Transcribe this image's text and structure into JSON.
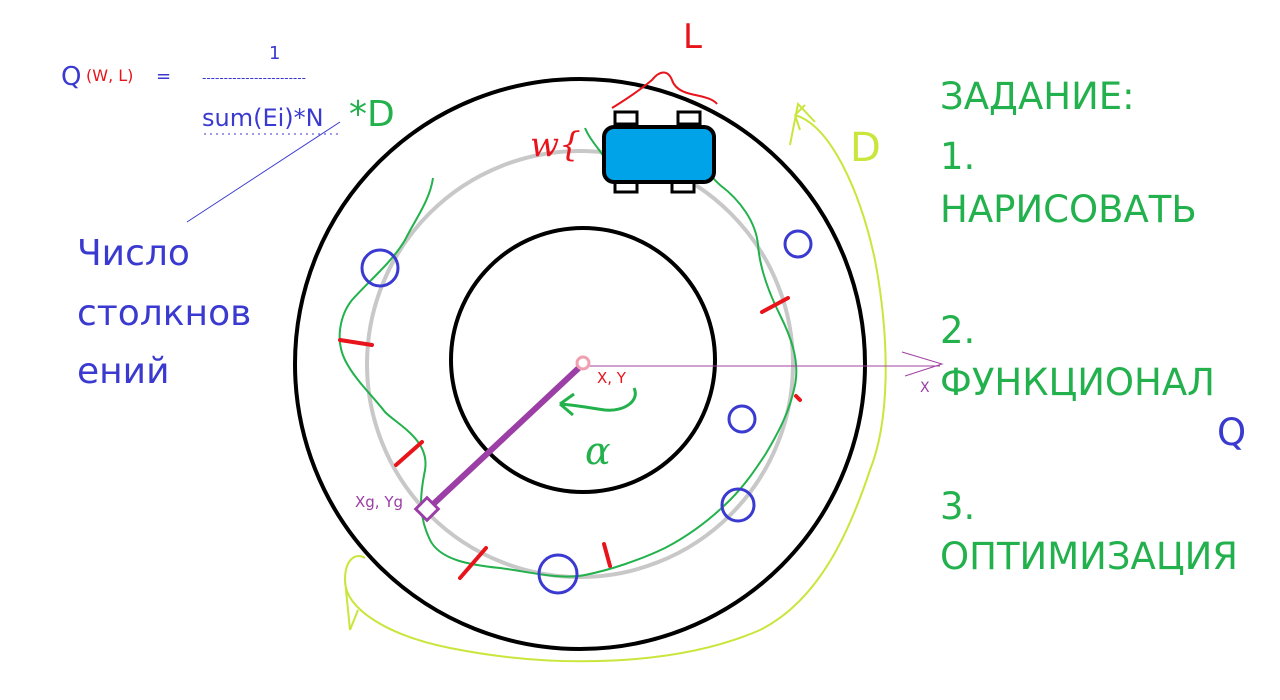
{
  "formula": {
    "q_symbol": "Q",
    "q_args": "(W, L)",
    "equals": "=",
    "numerator": "1",
    "fraction_bar": "------------------------",
    "denominator": "sum(Ei)*N",
    "d_multiplier": "*D"
  },
  "collisions_note": {
    "line1": "Число",
    "line2": "столкнов",
    "line3": "ений"
  },
  "task": {
    "heading": "ЗАДАНИЕ:",
    "step1_num": "1.",
    "step1_text": "НАРИСОВАТЬ",
    "step2_num": "2.",
    "step2_text": "ФУНКЦИОНАЛ",
    "step2_symbol": "Q",
    "step3_num": "3.",
    "step3_text": "ОПТИМИЗАЦИЯ"
  },
  "labels": {
    "length": "L",
    "width": "w{",
    "distance": "D",
    "center": "X, Y",
    "goal": "Xg, Yg",
    "x_axis": "X",
    "angle": "α"
  },
  "colors": {
    "blue": "#3a3ad0",
    "green": "#22b14c",
    "red": "#e8141b",
    "purple": "#9b3ea6",
    "yellow_green": "#c8e63c",
    "car": "#00a2e8",
    "track_gray": "#c8c8c8"
  }
}
